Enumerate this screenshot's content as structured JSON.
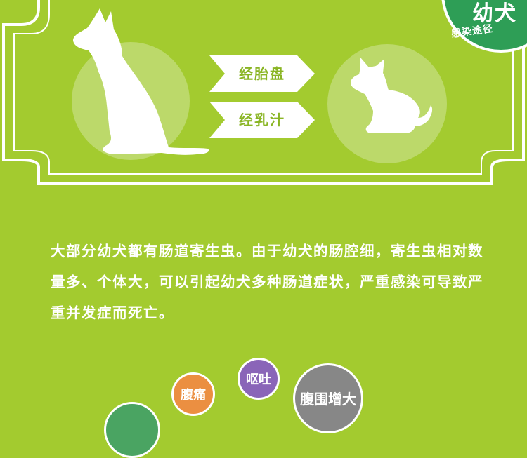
{
  "badge": {
    "title": "幼犬",
    "subtitle": "感染途径"
  },
  "transmission": {
    "route_placenta": "经胎盘",
    "route_milk": "经乳汁"
  },
  "description": "大部分幼犬都有肠道寄生虫。由于幼犬的肠腔细，寄生虫相对数量多、个体大，可以引起幼犬多种肠道症状，严重感染可导致严重并发症而死亡。",
  "symptoms": {
    "abdominal_pain": "腹痛",
    "vomiting": "呕吐",
    "abdominal_enlargement": "腹围增大"
  },
  "colors": {
    "background": "#a3cb2f",
    "badge": "#2e9e56",
    "arrow_text": "#8ab524",
    "pain": "#eb8f41",
    "vomit": "#8a65b8",
    "belly": "#878787"
  },
  "icons": [
    "adult-dog-icon",
    "puppy-icon",
    "arrow-right-icon"
  ]
}
